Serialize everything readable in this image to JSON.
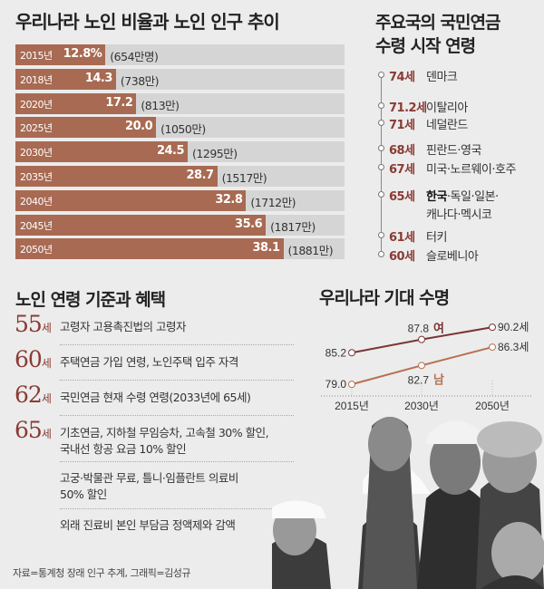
{
  "bar_section": {
    "title": "우리나라 노인 비율과 노인 인구 추이"
  },
  "pension_section": {
    "title_line1": "주요국의 국민연금",
    "title_line2": "수령 시작 연령",
    "items": [
      {
        "age": "74세",
        "countries": "덴마크"
      },
      {
        "age": "71.2세",
        "countries": "이탈리아"
      },
      {
        "age": "71세",
        "countries": "네덜란드"
      },
      {
        "age": "68세",
        "countries": "핀란드·영국"
      },
      {
        "age": "67세",
        "countries": "미국·노르웨이·호주"
      },
      {
        "age": "65세",
        "countries_bold": "한국",
        "countries": "·독일·일본·",
        "countries_line2": "캐나다·멕시코"
      },
      {
        "age": "61세",
        "countries": "터키"
      },
      {
        "age": "60세",
        "countries": "슬로베니아"
      }
    ]
  },
  "benefit_section": {
    "title": "노인 연령 기준과 혜택",
    "unit": "세",
    "items": [
      {
        "age": "55",
        "lines": [
          "고령자 고용촉진법의 고령자"
        ]
      },
      {
        "age": "60",
        "lines": [
          "주택연금 가입 연령, 노인주택 입주 자격"
        ]
      },
      {
        "age": "62",
        "lines": [
          "국민연금 현재 수령 연령(2033년에 65세)"
        ]
      },
      {
        "age": "65",
        "lines": [
          "기초연금, 지하철 무임승차, 고속철 30% 할인,",
          "국내선 항공 요금 10% 할인"
        ]
      },
      {
        "age": "",
        "lines": [
          "고궁·박물관 무료, 틀니·임플란트 의료비",
          "50% 할인"
        ]
      },
      {
        "age": "",
        "lines": [
          "외래 진료비 본인 부담금 정액제와 감액"
        ]
      }
    ]
  },
  "source": "자료=통계청 장래 인구 추계, 그래픽=김성규",
  "colors": {
    "bar": "#a86a52",
    "bar_bg": "#d5d5d5",
    "female": "#7a3535",
    "male": "#b8704e",
    "accent": "#8a3b34"
  },
  "chart_data": [
    {
      "type": "bar",
      "title": "우리나라 노인 비율과 노인 인구 추이",
      "orientation": "horizontal",
      "categories": [
        "2015년",
        "2018년",
        "2020년",
        "2025년",
        "2030년",
        "2035년",
        "2040년",
        "2045년",
        "2050년"
      ],
      "value_labels": [
        "12.8%",
        "14.3",
        "17.2",
        "20.0",
        "24.5",
        "28.7",
        "32.8",
        "35.6",
        "38.1"
      ],
      "values": [
        12.8,
        14.3,
        17.2,
        20.0,
        24.5,
        28.7,
        32.8,
        35.6,
        38.1
      ],
      "population_labels": [
        "(654만명)",
        "(738만)",
        "(813만)",
        "(1050만)",
        "(1295만)",
        "(1517만)",
        "(1712만)",
        "(1817만)",
        "(1881만)"
      ],
      "population": [
        654,
        738,
        813,
        1050,
        1295,
        1517,
        1712,
        1817,
        1881
      ],
      "xlim": [
        0,
        46.8
      ]
    },
    {
      "type": "line",
      "title": "우리나라 기대 수명",
      "categories": [
        "2015년",
        "2030년",
        "2050년"
      ],
      "x": [
        2015,
        2030,
        2050
      ],
      "series": [
        {
          "name": "여",
          "values": [
            85.2,
            87.8,
            90.2
          ],
          "labels": [
            "85.2",
            "87.8",
            "90.2세"
          ]
        },
        {
          "name": "남",
          "values": [
            79.0,
            82.7,
            86.3
          ],
          "labels": [
            "79.0",
            "82.7",
            "86.3세"
          ]
        }
      ],
      "ylim": [
        76,
        92
      ]
    }
  ]
}
